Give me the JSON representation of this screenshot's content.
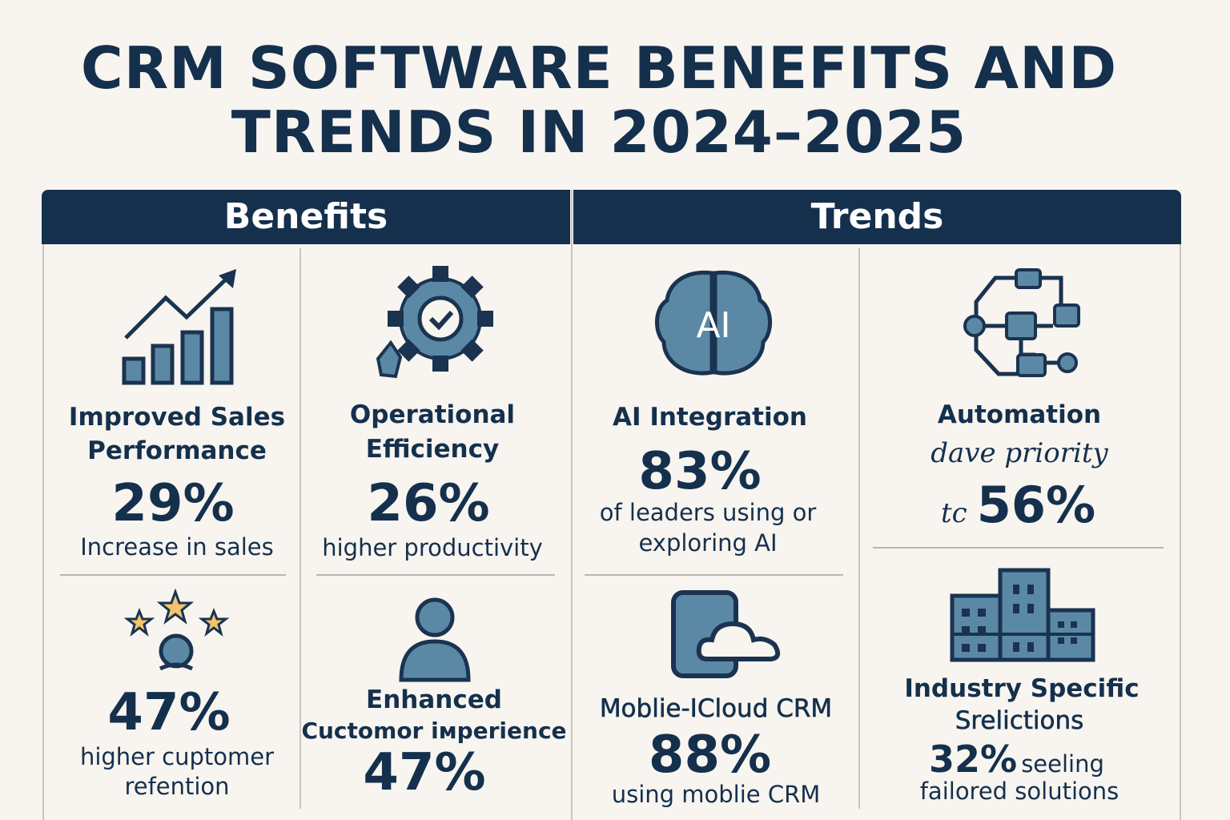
{
  "title": {
    "line1": "CRM SOFTWARE BENEFITS AND",
    "line2": "TRENDS IN 2024–2025"
  },
  "headers": {
    "benefits": "Benefits",
    "trends": "Trends"
  },
  "benefits": [
    {
      "icon": "bar-chart-growth-icon",
      "label1": "Improved Sales",
      "label2": "Performance",
      "value": "29%",
      "text1": "Increase in sales"
    },
    {
      "icon": "gear-check-icon",
      "label1": "Operational",
      "label2": "Efficiency",
      "value": "26%",
      "text1": "higher productivity"
    },
    {
      "icon": "stars-person-icon",
      "value": "47%",
      "text1": "higher cuptomer",
      "text2": "refention"
    },
    {
      "icon": "person-icon",
      "label1": "Enhanced",
      "label2": "Cuctomor iмperience",
      "value": "47%"
    }
  ],
  "trends": [
    {
      "icon": "ai-brain-icon",
      "icon_text": "AI",
      "label1": "AI Integration",
      "value": "83%",
      "text1": "of leaders using or",
      "text2": "exploring AI"
    },
    {
      "icon": "flowchart-icon",
      "label1": "Automation",
      "text1": "dave priority",
      "prefix": "tc",
      "value": "56%"
    },
    {
      "icon": "mobile-cloud-icon",
      "label1": "Moblie-ICloud CRM",
      "value": "88%",
      "text1": "using moblie CRM"
    },
    {
      "icon": "buildings-icon",
      "label1": "Industry Specific",
      "label2": "Srelictions",
      "value": "32%",
      "text1": "seeling",
      "text2": "failored solutions"
    }
  ],
  "colors": {
    "navy": "#14304d",
    "steel": "#5b89a5",
    "background": "#f8f4ef",
    "star": "#f2c46d"
  }
}
